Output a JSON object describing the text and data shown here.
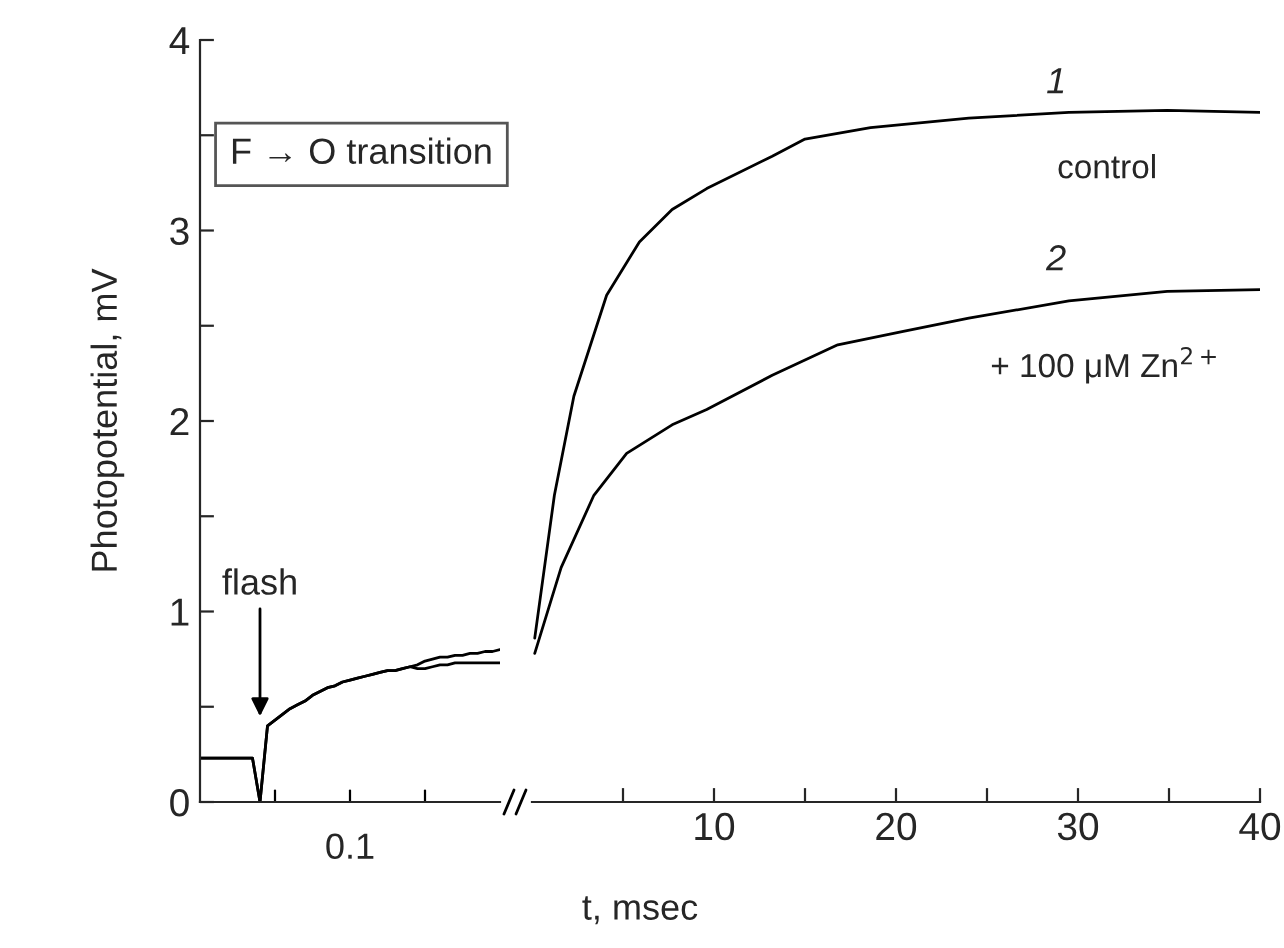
{
  "chart_data": [
    {
      "type": "line",
      "ylabel": "Photopotential, mV",
      "categories": [
        null,
        null,
        null,
        null,
        null,
        null,
        null,
        null,
        null,
        null,
        null,
        null,
        null,
        null,
        null,
        null,
        null,
        null,
        null,
        null,
        null,
        null,
        null,
        null,
        null,
        null,
        null,
        null,
        null,
        null,
        null,
        null,
        null,
        null,
        null,
        null,
        null,
        null,
        null,
        null,
        null
      ],
      "ylim": [
        0,
        4
      ],
      "yticks": [
        0,
        {
          "value": 0.5,
          "label": null
        },
        1,
        {
          "value": 1.5,
          "label": null
        },
        2,
        {
          "value": 2.5,
          "label": null
        },
        3,
        {
          "value": 3.5,
          "label": null
        },
        4
      ],
      "annotations": [
        "F → O transition",
        "flash",
        "0.1"
      ],
      "series": [
        {
          "color": "#000000",
          "values": [
            0.23,
            0.23,
            0.23,
            0.23,
            0.23,
            0.23,
            0.23,
            0.23,
            0.0,
            0.4,
            0.43,
            0.46,
            0.49,
            0.51,
            0.53,
            0.56,
            0.58,
            0.6,
            0.61,
            0.63,
            0.64,
            0.65,
            0.66,
            0.67,
            0.68,
            0.69,
            0.69,
            0.7,
            0.71,
            0.72,
            0.74,
            0.75,
            0.76,
            0.76,
            0.77,
            0.77,
            0.78,
            0.78,
            0.79,
            0.79,
            0.8
          ]
        },
        {
          "color": "#000000",
          "values": [
            0.23,
            0.23,
            0.23,
            0.23,
            0.23,
            0.23,
            0.23,
            0.23,
            0.0,
            0.4,
            0.43,
            0.46,
            0.49,
            0.51,
            0.53,
            0.56,
            0.58,
            0.6,
            0.61,
            0.63,
            0.64,
            0.65,
            0.66,
            0.67,
            0.68,
            0.69,
            0.69,
            0.7,
            0.71,
            0.7,
            0.7,
            0.71,
            0.72,
            0.72,
            0.73,
            0.73,
            0.73,
            0.73,
            0.73,
            0.73,
            0.73
          ]
        }
      ]
    },
    {
      "type": "line",
      "xlabel": "t, msec",
      "xlim": [
        0,
        40
      ],
      "xticks": [
        {
          "value": 5,
          "label": null
        },
        10,
        {
          "value": 15,
          "label": null
        },
        20,
        {
          "value": 25,
          "label": null
        },
        30,
        {
          "value": 35,
          "label": null
        },
        40
      ],
      "ylim": [
        0,
        4
      ],
      "tick_labels": "x",
      "annotations": [
        "1",
        "2"
      ],
      "series": [
        {
          "name": "control",
          "color": "#000000",
          "x": [
            0.15,
            1.23,
            2.3,
            4.1,
            5.9,
            7.7,
            9.6,
            13.2,
            15.0,
            18.6,
            24.0,
            29.5,
            34.9,
            40
          ],
          "values": [
            0.86,
            1.61,
            2.13,
            2.66,
            2.94,
            3.11,
            3.22,
            3.39,
            3.48,
            3.54,
            3.59,
            3.62,
            3.63,
            3.62
          ]
        },
        {
          "name": "+ 100 μM Zn$^{2+}$",
          "color": "#000000",
          "x": [
            0.15,
            1.6,
            3.4,
            5.2,
            7.7,
            9.6,
            13.2,
            16.8,
            20.4,
            24.0,
            29.5,
            34.9,
            40
          ],
          "values": [
            0.78,
            1.23,
            1.61,
            1.83,
            1.98,
            2.06,
            2.24,
            2.4,
            2.47,
            2.54,
            2.63,
            2.68,
            2.69
          ]
        }
      ]
    }
  ]
}
